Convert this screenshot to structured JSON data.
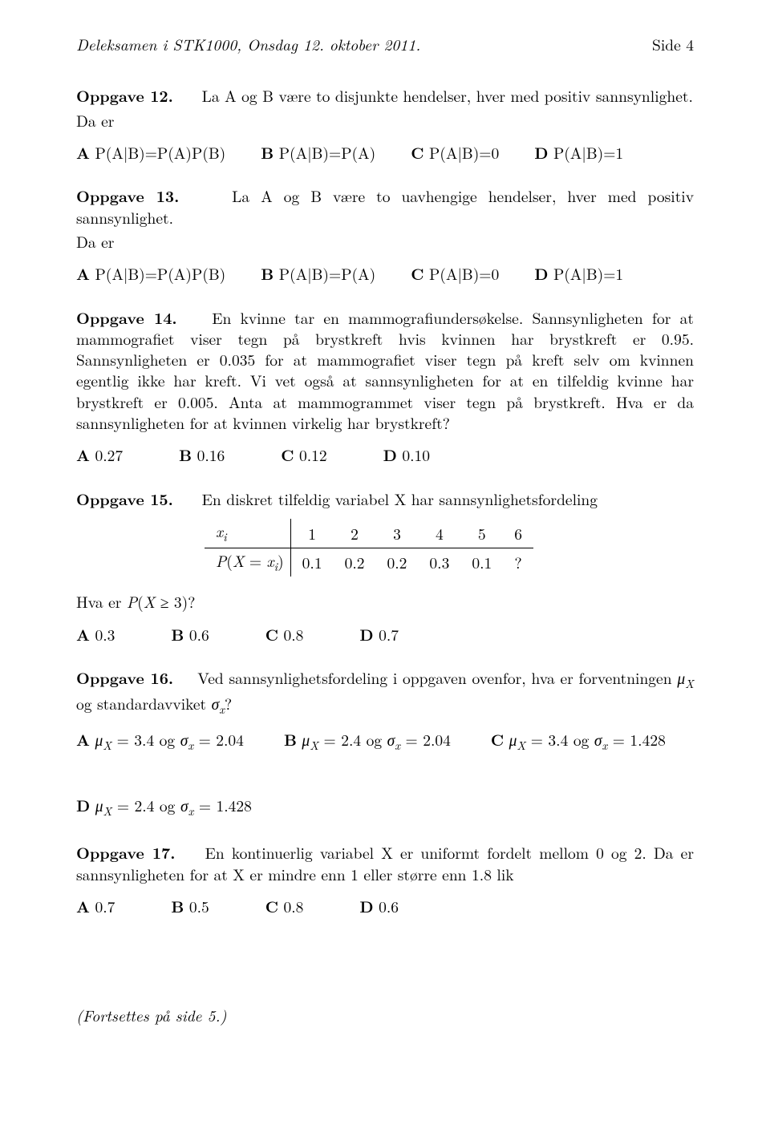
{
  "header": {
    "left": "Deleksamen i STK1000, Onsdag 12. oktober 2011.",
    "right": "Side 4"
  },
  "q12": {
    "label": "Oppgave 12.",
    "text1": "La A og B være to disjunkte hendelser, hver med positiv sannsynlighet.",
    "text2": "Da er",
    "choices": {
      "A": "P(A|B)=P(A)P(B)",
      "B": "P(A|B)=P(A)",
      "C": "P(A|B)=0",
      "D": "P(A|B)=1"
    }
  },
  "q13": {
    "label": "Oppgave 13.",
    "text1": "La A og B være to uavhengige hendelser, hver med positiv sannsynlighet.",
    "text2": "Da er",
    "choices": {
      "A": "P(A|B)=P(A)P(B)",
      "B": "P(A|B)=P(A)",
      "C": "P(A|B)=0",
      "D": "P(A|B)=1"
    }
  },
  "q14": {
    "label": "Oppgave 14.",
    "body": "En kvinne tar en mammografiundersøkelse. Sannsynligheten for at mammografiet viser tegn på brystkreft hvis kvinnen har brystkreft er 0.95. Sannsynligheten er 0.035 for at mammografiet viser tegn på kreft selv om kvinnen egentlig ikke har kreft. Vi vet også at sannsynligheten for at en tilfeldig kvinne har brystkreft er 0.005. Anta at mammogrammet viser tegn på brystkreft. Hva er da sannsynligheten for at kvinnen virkelig har brystkreft?",
    "choices": {
      "A": "0.27",
      "B": "0.16",
      "C": "0.12",
      "D": "0.10"
    }
  },
  "q15": {
    "label": "Oppgave 15.",
    "text": "En diskret tilfeldig variabel X har sannsynlighetsfordeling",
    "table": {
      "row1_label": "xᵢ",
      "row2_label": "P(X = xᵢ)",
      "col_values": [
        "1",
        "2",
        "3",
        "4",
        "5",
        "6"
      ],
      "prob_values": [
        "0.1",
        "0.2",
        "0.2",
        "0.3",
        "0.1",
        "?"
      ]
    },
    "question": "Hva er P(X ≥ 3)?",
    "choices": {
      "A": "0.3",
      "B": "0.6",
      "C": "0.8",
      "D": "0.7"
    }
  },
  "q16": {
    "label": "Oppgave 16.",
    "text_pre": "Ved sannsynlighetsfordeling i oppgaven ovenfor, hva er forventningen ",
    "text_mid": " og standardavviket ",
    "choices": {
      "A": "μ_X = 3.4 og σ_x = 2.04",
      "B": "μ_X = 2.4 og σ_x = 2.04",
      "C": "μ_X = 3.4 og σ_x = 1.428",
      "D": "μ_X = 2.4 og σ_x = 1.428"
    }
  },
  "q17": {
    "label": "Oppgave 17.",
    "text": "En kontinuerlig variabel X er uniformt fordelt mellom 0 og 2. Da er sannsynligheten for at X er mindre enn 1 eller større enn 1.8 lik",
    "choices": {
      "A": "0.7",
      "B": "0.5",
      "C": "0.8",
      "D": "0.6"
    }
  },
  "footer": "(Fortsettes på side 5.)"
}
